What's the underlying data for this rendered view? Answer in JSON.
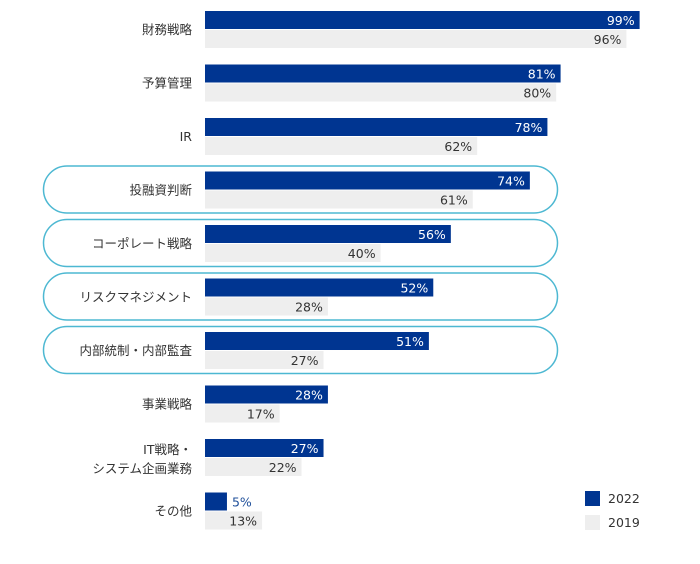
{
  "chart_data": {
    "type": "bar",
    "orientation": "horizontal",
    "categories": [
      "財務戦略",
      "予算管理",
      "IR",
      "投融資判断",
      "コーポレート戦略",
      "リスクマネジメント",
      "内部統制・内部監査",
      "事業戦略",
      "IT戦略・\nシステム企画業務",
      "その他"
    ],
    "series": [
      {
        "name": "2022",
        "values": [
          99,
          81,
          78,
          74,
          56,
          52,
          51,
          28,
          27,
          5
        ],
        "color": "#003591"
      },
      {
        "name": "2019",
        "values": [
          96,
          80,
          62,
          61,
          40,
          28,
          27,
          17,
          22,
          13
        ],
        "color": "#eeeeee"
      }
    ],
    "value_suffix": "%",
    "highlighted_categories": [
      "投融資判断",
      "コーポレート戦略",
      "リスクマネジメント",
      "内部統制・内部監査"
    ],
    "highlight_color": "#4db8d2",
    "xlim": [
      0,
      100
    ],
    "grid": false,
    "legend_position": "bottom-right"
  }
}
